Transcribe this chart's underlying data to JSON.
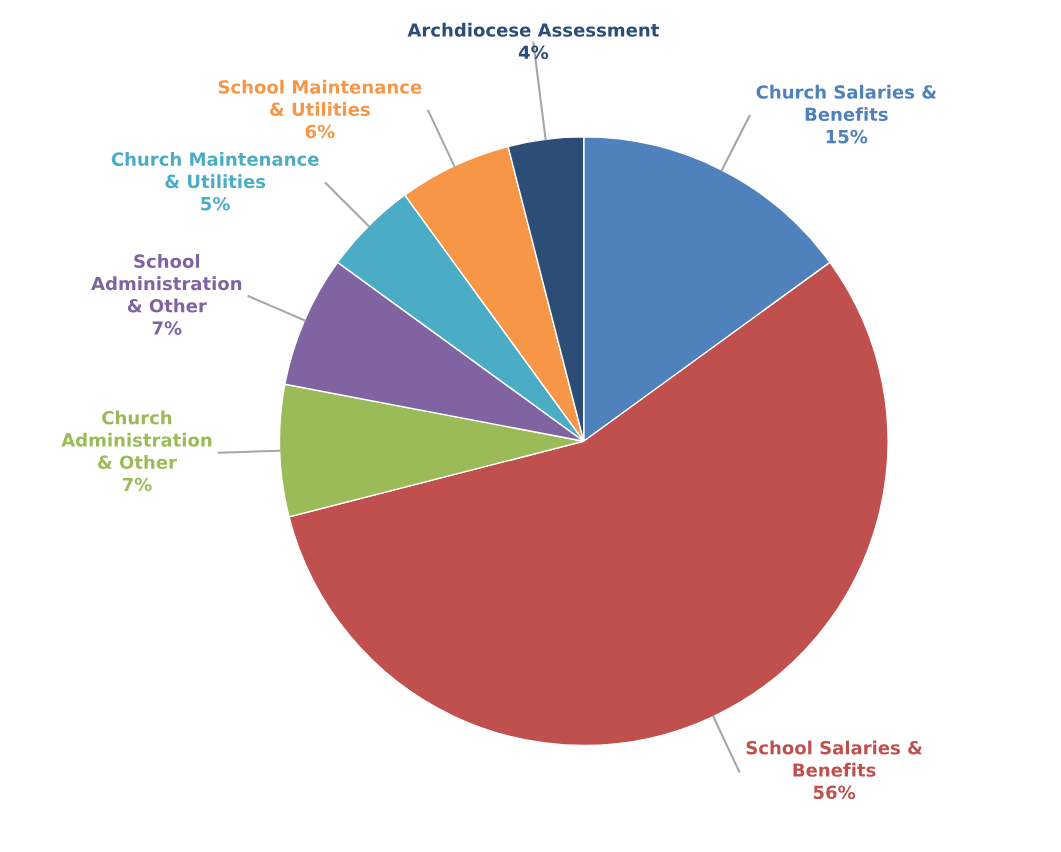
{
  "chart_data": {
    "type": "pie",
    "categories": [
      "Church Salaries &\nBenefits",
      "School Salaries &\nBenefits",
      "Church\nAdministration\n& Other",
      "School\nAdministration\n& Other",
      "Church Maintenance\n& Utilities",
      "School Maintenance\n& Utilities",
      "Archdiocese Assessment"
    ],
    "values": [
      15,
      56,
      7,
      7,
      5,
      6,
      4
    ],
    "colors": [
      "#4f81bd",
      "#c0504d",
      "#9bbb59",
      "#8064a2",
      "#4bacc6",
      "#f79646",
      "#2c4d75"
    ],
    "value_labels": [
      "15%",
      "56%",
      "7%",
      "7%",
      "5%",
      "6%",
      "4%"
    ]
  }
}
